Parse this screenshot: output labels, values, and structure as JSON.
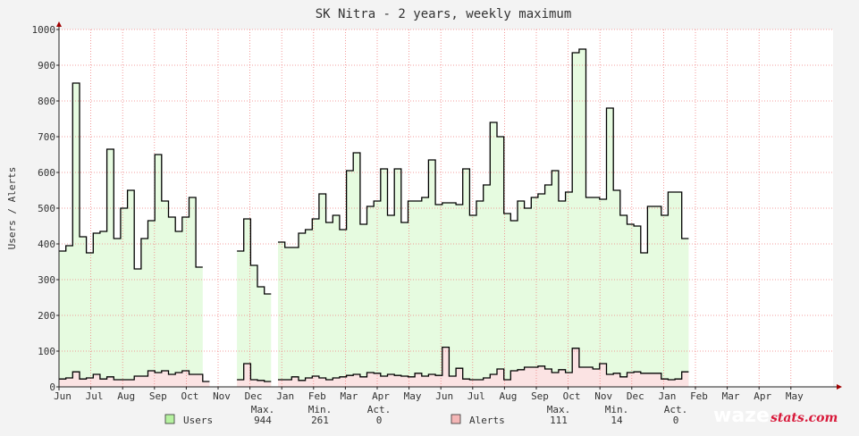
{
  "chart_data": {
    "type": "line",
    "title": "SK Nitra - 2 years, weekly maximum",
    "ylabel": "Users / Alerts",
    "xlabel": "",
    "ylim": [
      0,
      1000
    ],
    "yticks": [
      0,
      100,
      200,
      300,
      400,
      500,
      600,
      700,
      800,
      900,
      1000
    ],
    "x_start_label": "Jun",
    "xtick_labels": [
      "Jun",
      "Jul",
      "Aug",
      "Sep",
      "Oct",
      "Nov",
      "Dec",
      "Jan",
      "Feb",
      "Mar",
      "Apr",
      "May",
      "Jun",
      "Jul",
      "Aug",
      "Sep",
      "Oct",
      "Nov",
      "Dec",
      "Jan",
      "Feb",
      "Mar",
      "Apr",
      "May"
    ],
    "grid": true,
    "legend_position": "bottom",
    "series": [
      {
        "name": "Users",
        "color": "#000000",
        "fill": "#e6fbe0",
        "values": [
          380,
          395,
          850,
          420,
          375,
          430,
          435,
          665,
          415,
          500,
          550,
          330,
          415,
          465,
          650,
          520,
          475,
          435,
          475,
          530,
          335,
          null,
          null,
          null,
          null,
          null,
          380,
          470,
          340,
          280,
          260,
          null,
          405,
          390,
          390,
          430,
          440,
          470,
          540,
          460,
          480,
          440,
          605,
          655,
          455,
          505,
          520,
          610,
          480,
          610,
          460,
          520,
          520,
          530,
          635,
          510,
          515,
          515,
          510,
          610,
          480,
          520,
          565,
          740,
          700,
          485,
          465,
          520,
          500,
          530,
          540,
          565,
          605,
          520,
          545,
          935,
          945,
          530,
          530,
          525,
          780,
          550,
          480,
          455,
          450,
          375,
          505,
          505,
          480,
          545,
          545,
          415
        ]
      },
      {
        "name": "Alerts",
        "color": "#000000",
        "fill": "#fbe3e3",
        "values": [
          22,
          25,
          42,
          22,
          25,
          35,
          22,
          28,
          20,
          20,
          20,
          30,
          30,
          45,
          40,
          45,
          35,
          40,
          45,
          35,
          35,
          15,
          null,
          null,
          null,
          null,
          20,
          65,
          20,
          18,
          15,
          null,
          20,
          20,
          28,
          18,
          25,
          30,
          25,
          20,
          25,
          28,
          32,
          35,
          28,
          40,
          38,
          30,
          35,
          32,
          30,
          28,
          38,
          30,
          35,
          32,
          111,
          30,
          52,
          22,
          20,
          20,
          25,
          35,
          50,
          20,
          45,
          48,
          55,
          55,
          58,
          50,
          40,
          48,
          40,
          108,
          55,
          55,
          50,
          65,
          35,
          38,
          28,
          40,
          42,
          38,
          38,
          38,
          22,
          20,
          22,
          42
        ]
      }
    ],
    "legend": [
      {
        "name": "Users",
        "max": "944",
        "min": "261",
        "act": "0"
      },
      {
        "name": "Alerts",
        "max": "111",
        "min": "14",
        "act": "0"
      }
    ],
    "stat_headers": {
      "max": "Max.",
      "min": "Min.",
      "act": "Act."
    },
    "brand": {
      "main": "waze",
      "suffix": "stats.com"
    }
  }
}
